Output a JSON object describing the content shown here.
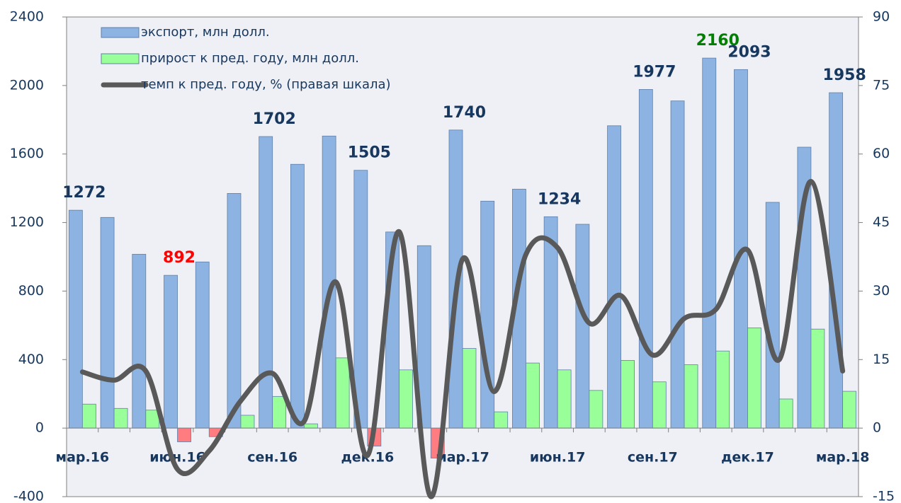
{
  "chart_data": {
    "type": "combo",
    "categories": [
      "мар.16",
      null,
      null,
      "июн.16",
      null,
      null,
      "сен.16",
      null,
      null,
      "дек.16",
      null,
      null,
      "мар.17",
      null,
      null,
      "июн.17",
      null,
      null,
      "сен.17",
      null,
      null,
      "дек.17",
      null,
      null,
      "мар.18"
    ],
    "series": [
      {
        "name": "экспорт, млн долл.",
        "type": "bar",
        "color": "#8db3e2",
        "values": [
          1272,
          1230,
          1015,
          892,
          970,
          1370,
          1702,
          1540,
          1705,
          1505,
          1145,
          1065,
          1740,
          1325,
          1395,
          1234,
          1190,
          1765,
          1977,
          1910,
          2160,
          2093,
          1318,
          1640,
          1958
        ],
        "value_labels": [
          "1272",
          null,
          null,
          "892",
          null,
          null,
          "1702",
          null,
          null,
          "1505",
          null,
          null,
          "1740",
          null,
          null,
          "1234",
          null,
          null,
          "1977",
          null,
          "2160",
          "2093",
          null,
          null,
          "1958"
        ]
      },
      {
        "name": "прирост к пред. году, млн долл.",
        "type": "bar",
        "color": "#99ff99",
        "negative_color": "#ff7c80",
        "values": [
          140,
          115,
          105,
          -80,
          -50,
          75,
          185,
          25,
          410,
          -105,
          340,
          -175,
          465,
          95,
          380,
          340,
          220,
          395,
          270,
          370,
          450,
          585,
          170,
          578,
          215
        ]
      },
      {
        "name": "темп к пред. году, % (правая шкала)",
        "type": "line",
        "axis": "y2",
        "color": "#595959",
        "values": [
          12.3,
          10.5,
          12.5,
          -9,
          -5,
          6,
          12,
          1.5,
          32,
          -6,
          43,
          -15,
          37,
          8,
          38,
          39.5,
          23,
          29,
          16,
          24,
          26,
          39,
          15,
          54,
          12.5
        ]
      }
    ],
    "ylim": [
      -400,
      2400
    ],
    "yticks": [
      -400,
      0,
      400,
      800,
      1200,
      1600,
      2000,
      2400
    ],
    "y2lim": [
      -15,
      90
    ],
    "y2ticks": [
      -15,
      0,
      15,
      30,
      45,
      60,
      75,
      90
    ],
    "legend": "upper left"
  }
}
